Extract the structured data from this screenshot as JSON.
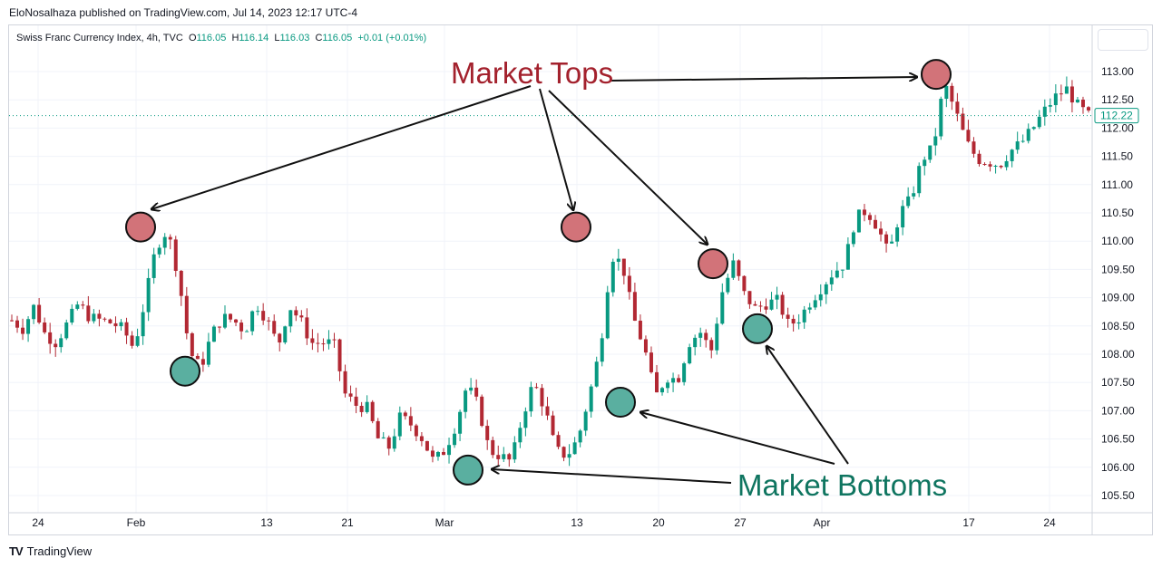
{
  "header": {
    "publisher_line": "EloNosalhaza published on TradingView.com, Jul 14, 2023 12:17 UTC-4"
  },
  "legend": {
    "symbol": "Swiss Franc Currency Index, 4h, TVC",
    "open_label": "O",
    "open": "116.05",
    "high_label": "H",
    "high": "116.14",
    "low_label": "L",
    "low": "116.03",
    "close_label": "C",
    "close": "116.05",
    "change": "+0.01 (+0.01%)"
  },
  "footer": {
    "brand": "TradingView",
    "logo": "TV"
  },
  "colors": {
    "up": "#089981",
    "down": "#b22833",
    "top_marker": "#d27379",
    "bottom_marker": "#5aafa0",
    "tops_text": "#a3212d",
    "bottoms_text": "#0f7560",
    "grid": "#f0f3fa",
    "price_tag": "#089981"
  },
  "annotations": {
    "tops_label": "Market Tops",
    "bottoms_label": "Market Bottoms"
  },
  "chart_data": {
    "type": "candlestick",
    "title": "Swiss Franc Currency Index, 4h, TVC",
    "xlabel": "",
    "ylabel": "",
    "ylim": [
      105.2,
      113.6
    ],
    "grid": true,
    "y_ticks": [
      "113.00",
      "112.50",
      "112.00",
      "111.50",
      "111.00",
      "110.50",
      "110.00",
      "109.50",
      "109.00",
      "108.50",
      "108.00",
      "107.50",
      "107.00",
      "106.50",
      "106.00",
      "105.50"
    ],
    "x_ticks": [
      "24",
      "Feb",
      "13",
      "21",
      "Mar",
      "13",
      "20",
      "27",
      "Apr",
      "17",
      "24"
    ],
    "last_price": "112.22",
    "close_path": [
      108.6,
      108.45,
      108.85,
      108.35,
      108.2,
      108.55,
      108.9,
      108.65,
      108.6,
      108.55,
      108.45,
      108.1,
      108.95,
      109.9,
      110.2,
      109.4,
      108.05,
      107.75,
      108.35,
      108.65,
      108.6,
      108.4,
      108.9,
      108.6,
      108.15,
      108.85,
      108.6,
      108.2,
      108.2,
      108.2,
      107.3,
      107.1,
      107.05,
      106.5,
      106.35,
      106.9,
      106.75,
      106.5,
      106.1,
      106.3,
      106.75,
      107.45,
      107.1,
      106.3,
      106.2,
      106.1,
      106.9,
      107.5,
      107.05,
      106.3,
      106.2,
      106.5,
      107.25,
      108.1,
      109.75,
      109.6,
      108.65,
      108.1,
      107.25,
      107.6,
      107.55,
      108.2,
      108.4,
      108.05,
      109.1,
      109.6,
      109.05,
      108.8,
      108.9,
      108.95,
      108.5,
      108.65,
      108.95,
      109.2,
      109.45,
      109.6,
      110.4,
      110.55,
      110.25,
      109.75,
      110.5,
      110.75,
      111.45,
      111.65,
      112.8,
      112.3,
      111.75,
      111.45,
      111.4,
      111.35,
      111.6,
      111.75,
      112.0,
      112.3,
      112.55,
      112.7,
      112.4,
      112.22
    ],
    "candle_count": 198,
    "markers": {
      "tops": [
        {
          "date": "Feb",
          "price": 110.25
        },
        {
          "date": "Mar 13",
          "price": 110.25
        },
        {
          "date": "Mar 24",
          "price": 109.6
        },
        {
          "date": "Apr 14",
          "price": 112.95
        }
      ],
      "bottoms": [
        {
          "date": "Feb 5",
          "price": 107.7
        },
        {
          "date": "Mar 1",
          "price": 105.95
        },
        {
          "date": "Mar 16",
          "price": 107.15
        },
        {
          "date": "Mar 28",
          "price": 108.45
        }
      ]
    }
  }
}
